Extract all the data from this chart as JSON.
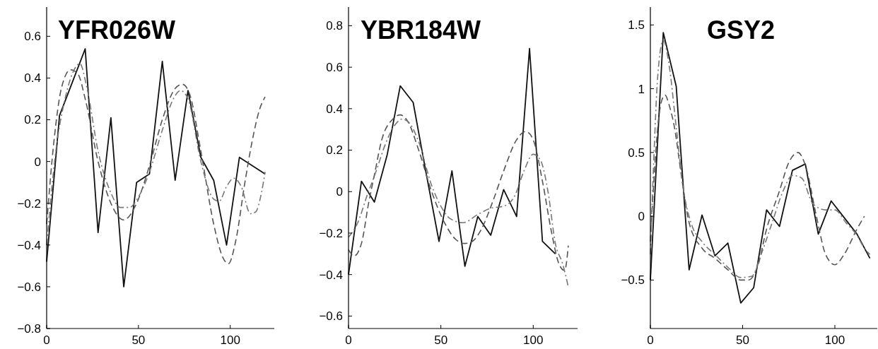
{
  "chart_data": [
    {
      "type": "line",
      "title": "YFR026W",
      "xlim": [
        0,
        124
      ],
      "xticks": [
        0,
        50,
        100
      ],
      "ylim": [
        -0.8,
        0.74
      ],
      "yticks": [
        {
          "value": -0.8,
          "label": "−0.8"
        },
        {
          "value": -0.6,
          "label": "−0.6"
        },
        {
          "value": -0.4,
          "label": "−0.4"
        },
        {
          "value": -0.2,
          "label": "−0.2"
        },
        0,
        0.2,
        0.4,
        0.6
      ],
      "grid": false,
      "series": [
        {
          "color": "#111111",
          "line_style": "solid",
          "x": [
            0,
            7,
            14,
            21,
            28,
            35,
            42,
            49,
            56,
            63,
            70,
            77,
            84,
            91,
            98,
            105,
            112,
            119
          ],
          "values": [
            -0.48,
            0.22,
            0.38,
            0.54,
            -0.34,
            0.21,
            -0.6,
            -0.1,
            -0.06,
            0.48,
            -0.09,
            0.34,
            0.02,
            -0.09,
            -0.4,
            0.02,
            -0.02,
            -0.06
          ]
        },
        {
          "color": "#555555",
          "line_style": "dashed",
          "x": [
            0,
            4,
            8,
            13,
            17,
            21,
            28,
            35,
            42,
            49,
            56,
            63,
            70,
            74,
            78,
            84,
            91,
            96,
            99,
            103,
            108,
            112,
            116,
            119
          ],
          "values": [
            -0.3,
            0.1,
            0.35,
            0.44,
            0.42,
            0.3,
            0.0,
            -0.2,
            -0.28,
            -0.2,
            -0.02,
            0.2,
            0.35,
            0.37,
            0.32,
            0.05,
            -0.3,
            -0.46,
            -0.49,
            -0.38,
            -0.1,
            0.1,
            0.25,
            0.31
          ]
        },
        {
          "color": "#777777",
          "line_style": "dashdot",
          "x": [
            0,
            5,
            10,
            15,
            18,
            22,
            28,
            35,
            40,
            45,
            50,
            56,
            63,
            69,
            73,
            77,
            84,
            91,
            94,
            98,
            102,
            106,
            111,
            114,
            117,
            119
          ],
          "values": [
            -0.4,
            0.05,
            0.3,
            0.44,
            0.47,
            0.35,
            0.05,
            -0.15,
            -0.22,
            -0.22,
            -0.17,
            -0.05,
            0.15,
            0.3,
            0.34,
            0.3,
            0.0,
            -0.18,
            -0.19,
            -0.12,
            -0.08,
            -0.12,
            -0.25,
            -0.24,
            -0.15,
            -0.05
          ]
        }
      ]
    },
    {
      "type": "line",
      "title": "YBR184W",
      "xlim": [
        0,
        124
      ],
      "xticks": [
        0,
        50,
        100
      ],
      "ylim": [
        -0.66,
        0.89
      ],
      "yticks": [
        {
          "value": -0.6,
          "label": "−0.6"
        },
        {
          "value": -0.4,
          "label": "−0.4"
        },
        {
          "value": -0.2,
          "label": "−0.2"
        },
        0,
        0.2,
        0.4,
        0.6,
        0.8
      ],
      "grid": false,
      "series": [
        {
          "color": "#111111",
          "line_style": "solid",
          "x": [
            0,
            7,
            14,
            21,
            28,
            35,
            42,
            49,
            56,
            63,
            70,
            77,
            84,
            91,
            98,
            105,
            112
          ],
          "values": [
            -0.4,
            0.05,
            -0.05,
            0.18,
            0.51,
            0.43,
            0.09,
            -0.24,
            0.1,
            -0.36,
            -0.12,
            -0.21,
            0.01,
            -0.12,
            0.69,
            -0.24,
            -0.3
          ]
        },
        {
          "color": "#555555",
          "line_style": "dashed",
          "x": [
            0,
            3,
            7,
            11,
            14,
            18,
            24,
            28,
            32,
            38,
            45,
            52,
            58,
            63,
            67,
            72,
            78,
            84,
            91,
            96,
            100,
            105,
            110,
            114,
            117,
            119
          ],
          "values": [
            -0.28,
            -0.31,
            -0.25,
            -0.05,
            0.08,
            0.25,
            0.35,
            0.37,
            0.34,
            0.2,
            0.0,
            -0.15,
            -0.23,
            -0.25,
            -0.24,
            -0.18,
            -0.05,
            0.1,
            0.25,
            0.29,
            0.25,
            0.05,
            -0.2,
            -0.35,
            -0.38,
            -0.26
          ]
        },
        {
          "color": "#777777",
          "line_style": "dashdot",
          "x": [
            0,
            5,
            10,
            15,
            20,
            25,
            29,
            33,
            38,
            45,
            50,
            55,
            62,
            70,
            77,
            84,
            90,
            95,
            100,
            104,
            108,
            112,
            116,
            119
          ],
          "values": [
            -0.22,
            -0.15,
            -0.02,
            0.1,
            0.23,
            0.32,
            0.35,
            0.33,
            0.24,
            0.03,
            -0.07,
            -0.13,
            -0.15,
            -0.11,
            -0.08,
            -0.07,
            -0.02,
            0.1,
            0.18,
            0.15,
            0.0,
            -0.25,
            -0.35,
            -0.46
          ]
        }
      ]
    },
    {
      "type": "line",
      "title": "GSY2",
      "xlim": [
        0,
        123
      ],
      "xticks": [
        0,
        50,
        100
      ],
      "ylim": [
        -0.88,
        1.64
      ],
      "yticks": [
        {
          "value": -0.5,
          "label": "−0.5"
        },
        0,
        0.5,
        1,
        1.5
      ],
      "grid": false,
      "series": [
        {
          "color": "#111111",
          "line_style": "solid",
          "x": [
            0,
            7,
            14,
            21,
            28,
            35,
            42,
            49,
            56,
            63,
            70,
            77,
            84,
            91,
            98,
            105,
            112,
            119
          ],
          "values": [
            -0.5,
            1.44,
            1.02,
            -0.42,
            0.01,
            -0.31,
            -0.21,
            -0.68,
            -0.56,
            0.05,
            -0.08,
            0.36,
            0.41,
            -0.14,
            0.12,
            -0.01,
            -0.14,
            -0.33
          ]
        },
        {
          "color": "#555555",
          "line_style": "dashed",
          "x": [
            0,
            2,
            4,
            6,
            8,
            10,
            13,
            17,
            21,
            28,
            35,
            42,
            49,
            53,
            58,
            63,
            70,
            75,
            80,
            84,
            90,
            95,
            100,
            105,
            112,
            116
          ],
          "values": [
            -0.2,
            0.3,
            0.7,
            0.9,
            0.95,
            0.88,
            0.7,
            0.3,
            -0.05,
            -0.25,
            -0.33,
            -0.42,
            -0.5,
            -0.5,
            -0.4,
            -0.1,
            0.2,
            0.42,
            0.5,
            0.4,
            0.0,
            -0.3,
            -0.38,
            -0.3,
            -0.1,
            0.0
          ]
        },
        {
          "color": "#777777",
          "line_style": "dashdot",
          "x": [
            0,
            2,
            4,
            7,
            10,
            14,
            18,
            22,
            28,
            35,
            42,
            49,
            55,
            60,
            66,
            72,
            77,
            82,
            88,
            95,
            100,
            106,
            112,
            116,
            119
          ],
          "values": [
            -0.3,
            0.5,
            1.1,
            1.38,
            1.2,
            0.7,
            0.2,
            -0.05,
            -0.2,
            -0.3,
            -0.4,
            -0.48,
            -0.47,
            -0.3,
            -0.05,
            0.2,
            0.32,
            0.3,
            0.1,
            0.05,
            0.05,
            -0.05,
            -0.15,
            -0.25,
            -0.3
          ]
        }
      ]
    }
  ]
}
